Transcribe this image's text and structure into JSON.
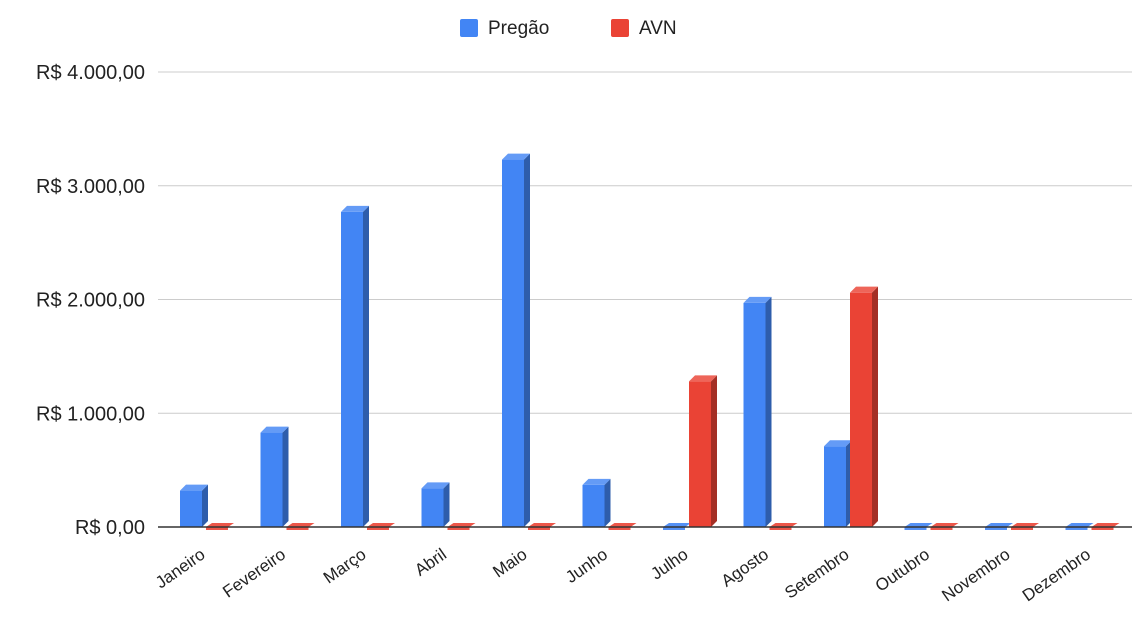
{
  "chart_data": {
    "type": "bar",
    "categories": [
      "Janeiro",
      "Fevereiro",
      "Março",
      "Abril",
      "Maio",
      "Junho",
      "Julho",
      "Agosto",
      "Setembro",
      "Outubro",
      "Novembro",
      "Dezembro"
    ],
    "series": [
      {
        "name": "Pregão",
        "color": "#4285f4",
        "values": [
          320,
          830,
          2770,
          340,
          3230,
          370,
          0,
          1970,
          710,
          0,
          0,
          0
        ]
      },
      {
        "name": "AVN",
        "color": "#ea4335",
        "values": [
          0,
          0,
          0,
          0,
          0,
          0,
          1280,
          0,
          2060,
          0,
          0,
          0
        ]
      }
    ],
    "ylim": [
      0,
      4000
    ],
    "yticks": [
      "R$ 0,00",
      "R$ 1.000,00",
      "R$ 2.000,00",
      "R$ 3.000,00",
      "R$ 4.000,00"
    ],
    "ytick_values": [
      0,
      1000,
      2000,
      3000,
      4000
    ],
    "legend_position": "top",
    "grid": true,
    "style": "3d"
  }
}
